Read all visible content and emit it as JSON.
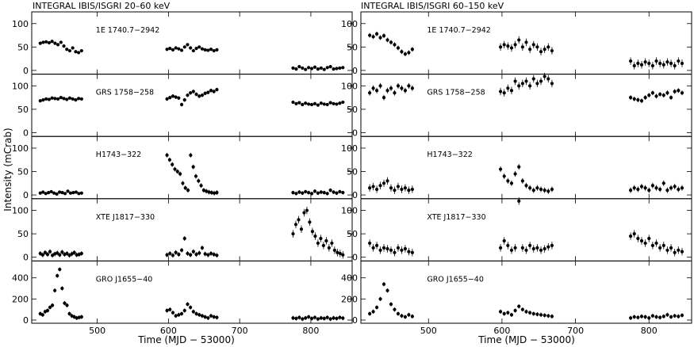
{
  "chart_data": {
    "type": "scatter",
    "ylabel": "Intensity (mCrab)",
    "xlabel": "Time (MJD − 53000)",
    "x_ticks": [
      500,
      600,
      700,
      800
    ],
    "xlim": [
      408,
      858
    ],
    "columns": [
      {
        "title": "INTEGRAL IBIS/ISGRI 20–60 keV",
        "panels": [
          {
            "source": "1E 1740.7−2942",
            "ylim": [
              -8,
              125
            ],
            "y_ticks": [
              0,
              50,
              100
            ],
            "segments": [
              {
                "x0": 420,
                "x1": 478,
                "y": [
                  58,
                  60,
                  61,
                  59,
                  62,
                  58,
                  55,
                  60,
                  52,
                  45,
                  42,
                  48,
                  40,
                  38,
                  42
                ],
                "err": 3
              },
              {
                "x0": 598,
                "x1": 668,
                "y": [
                  45,
                  47,
                  44,
                  48,
                  46,
                  43,
                  50,
                  55,
                  48,
                  42,
                  47,
                  50,
                  46,
                  44,
                  43,
                  45,
                  42,
                  44
                ],
                "err": 3
              },
              {
                "x0": 775,
                "x1": 845,
                "y": [
                  5,
                  3,
                  8,
                  5,
                  2,
                  6,
                  4,
                  7,
                  3,
                  5,
                  2,
                  6,
                  8,
                  3,
                  4,
                  5,
                  6
                ],
                "err": 3
              }
            ]
          },
          {
            "source": "GRS 1758−258",
            "ylim": [
              -8,
              125
            ],
            "y_ticks": [
              0,
              50,
              100
            ],
            "segments": [
              {
                "x0": 420,
                "x1": 478,
                "y": [
                  68,
                  70,
                  72,
                  71,
                  74,
                  73,
                  72,
                  75,
                  73,
                  71,
                  74,
                  72,
                  70,
                  73,
                  72
                ],
                "err": 3
              },
              {
                "x0": 598,
                "x1": 668,
                "y": [
                  72,
                  75,
                  78,
                  76,
                  74,
                  60,
                  70,
                  80,
                  85,
                  88,
                  82,
                  78,
                  80,
                  84,
                  86,
                  90,
                  88,
                  92
                ],
                "err": 4
              },
              {
                "x0": 775,
                "x1": 845,
                "y": [
                  65,
                  62,
                  64,
                  60,
                  63,
                  61,
                  60,
                  62,
                  59,
                  63,
                  61,
                  60,
                  64,
                  62,
                  61,
                  63,
                  65
                ],
                "err": 3
              }
            ]
          },
          {
            "source": "H1743−322",
            "ylim": [
              -8,
              125
            ],
            "y_ticks": [
              0,
              50,
              100
            ],
            "segments": [
              {
                "x0": 420,
                "x1": 478,
                "y": [
                  4,
                  6,
                  3,
                  5,
                  7,
                  4,
                  2,
                  6,
                  5,
                  3,
                  8,
                  4,
                  5,
                  6,
                  3,
                  4
                ],
                "err": 3
              },
              {
                "x0": 598,
                "x1": 668,
                "y": [
                  85,
                  75,
                  65,
                  55,
                  50,
                  45,
                  25,
                  15,
                  10,
                  85,
                  60,
                  40,
                  30,
                  20,
                  10,
                  8,
                  6,
                  5,
                  4,
                  5
                ],
                "err": 5
              },
              {
                "x0": 775,
                "x1": 845,
                "y": [
                  5,
                  3,
                  6,
                  4,
                  7,
                  5,
                  3,
                  8,
                  4,
                  6,
                  5,
                  3,
                  10,
                  6,
                  4,
                  7,
                  5
                ],
                "err": 4
              }
            ]
          },
          {
            "source": "XTE J1817−330",
            "ylim": [
              -8,
              125
            ],
            "y_ticks": [
              0,
              50,
              100
            ],
            "segments": [
              {
                "x0": 420,
                "x1": 478,
                "y": [
                  8,
                  5,
                  10,
                  6,
                  12,
                  4,
                  7,
                  9,
                  5,
                  11,
                  6,
                  8,
                  4,
                  7,
                  10,
                  5,
                  6,
                  8
                ],
                "err": 5
              },
              {
                "x0": 598,
                "x1": 668,
                "y": [
                  5,
                  8,
                  4,
                  10,
                  6,
                  15,
                  40,
                  8,
                  5,
                  12,
                  6,
                  9,
                  20,
                  7,
                  5,
                  8,
                  6,
                  4
                ],
                "err": 5
              },
              {
                "x0": 775,
                "x1": 845,
                "y": [
                  50,
                  70,
                  80,
                  60,
                  95,
                  100,
                  75,
                  55,
                  45,
                  30,
                  40,
                  25,
                  35,
                  20,
                  30,
                  15,
                  10,
                  8,
                  5
                ],
                "err": 8
              }
            ]
          },
          {
            "source": "GRO J1655−40",
            "ylim": [
              -30,
              560
            ],
            "y_ticks": [
              0,
              200,
              400
            ],
            "segments": [
              {
                "x0": 420,
                "x1": 478,
                "y": [
                  60,
                  50,
                  80,
                  90,
                  120,
                  140,
                  280,
                  420,
                  480,
                  300,
                  160,
                  140,
                  60,
                  40,
                  30,
                  20,
                  25,
                  30
                ],
                "err": 20
              },
              {
                "x0": 598,
                "x1": 668,
                "y": [
                  90,
                  100,
                  70,
                  40,
                  50,
                  60,
                  90,
                  150,
                  120,
                  80,
                  60,
                  50,
                  40,
                  30,
                  20,
                  40,
                  30,
                  25
                ],
                "err": 20
              },
              {
                "x0": 775,
                "x1": 845,
                "y": [
                  20,
                  15,
                  25,
                  10,
                  20,
                  30,
                  15,
                  25,
                  10,
                  20,
                  15,
                  25,
                  10,
                  20,
                  15,
                  25,
                  18
                ],
                "err": 20
              }
            ]
          }
        ]
      },
      {
        "title": "INTEGRAL IBIS/ISGRI 60–150 keV",
        "panels": [
          {
            "source": "1E 1740.7−2942",
            "ylim": [
              -8,
              125
            ],
            "y_ticks": [
              0,
              50,
              100
            ],
            "segments": [
              {
                "x0": 420,
                "x1": 478,
                "y": [
                  75,
                  72,
                  78,
                  70,
                  74,
                  65,
                  60,
                  55,
                  48,
                  40,
                  35,
                  38,
                  45
                ],
                "err": 5
              },
              {
                "x0": 598,
                "x1": 668,
                "y": [
                  50,
                  55,
                  52,
                  48,
                  55,
                  65,
                  50,
                  60,
                  45,
                  55,
                  50,
                  40,
                  45,
                  50,
                  42
                ],
                "err": 8
              },
              {
                "x0": 775,
                "x1": 845,
                "y": [
                  20,
                  10,
                  15,
                  12,
                  18,
                  15,
                  10,
                  20,
                  15,
                  12,
                  18,
                  15,
                  10,
                  20,
                  15
                ],
                "err": 8
              }
            ]
          },
          {
            "source": "GRS 1758−258",
            "ylim": [
              -8,
              125
            ],
            "y_ticks": [
              0,
              50,
              100
            ],
            "segments": [
              {
                "x0": 420,
                "x1": 478,
                "y": [
                  85,
                  95,
                  90,
                  100,
                  75,
                  90,
                  95,
                  85,
                  100,
                  95,
                  90,
                  100,
                  95
                ],
                "err": 6
              },
              {
                "x0": 598,
                "x1": 668,
                "y": [
                  88,
                  85,
                  95,
                  90,
                  110,
                  100,
                  105,
                  110,
                  100,
                  115,
                  105,
                  110,
                  120,
                  115,
                  105
                ],
                "err": 8
              },
              {
                "x0": 775,
                "x1": 845,
                "y": [
                  75,
                  72,
                  70,
                  68,
                  75,
                  80,
                  85,
                  78,
                  82,
                  80,
                  85,
                  75,
                  88,
                  90,
                  85
                ],
                "err": 5
              }
            ]
          },
          {
            "source": "H1743−322",
            "ylim": [
              -8,
              125
            ],
            "y_ticks": [
              0,
              50,
              100
            ],
            "segments": [
              {
                "x0": 420,
                "x1": 478,
                "y": [
                  15,
                  18,
                  12,
                  20,
                  25,
                  30,
                  15,
                  10,
                  18,
                  12,
                  15,
                  10,
                  12
                ],
                "err": 8
              },
              {
                "x0": 598,
                "x1": 668,
                "y": [
                  55,
                  40,
                  30,
                  25,
                  45,
                  60,
                  30,
                  20,
                  15,
                  10,
                  15,
                  12,
                  10,
                  8,
                  12
                ],
                "err": 6
              },
              {
                "x0": 775,
                "x1": 845,
                "y": [
                  10,
                  15,
                  12,
                  18,
                  15,
                  10,
                  20,
                  15,
                  12,
                  25,
                  10,
                  15,
                  18,
                  12,
                  15
                ],
                "err": 6
              }
            ]
          },
          {
            "source": "XTE J1817−330",
            "ylim": [
              -8,
              125
            ],
            "y_ticks": [
              0,
              50,
              100
            ],
            "segments": [
              {
                "x0": 420,
                "x1": 478,
                "y": [
                  30,
                  20,
                  25,
                  15,
                  20,
                  18,
                  15,
                  10,
                  20,
                  15,
                  18,
                  12,
                  10
                ],
                "err": 8
              },
              {
                "x0": 598,
                "x1": 668,
                "y": [
                  20,
                  35,
                  25,
                  15,
                  20,
                  120,
                  20,
                  15,
                  25,
                  18,
                  20,
                  15,
                  18,
                  22,
                  25
                ],
                "err": 8
              },
              {
                "x0": 775,
                "x1": 845,
                "y": [
                  45,
                  50,
                  40,
                  35,
                  30,
                  40,
                  25,
                  30,
                  20,
                  25,
                  15,
                  20,
                  10,
                  15,
                  12
                ],
                "err": 8
              }
            ]
          },
          {
            "source": "GRO J1655−40",
            "ylim": [
              -30,
              560
            ],
            "y_ticks": [
              0,
              200,
              400
            ],
            "segments": [
              {
                "x0": 420,
                "x1": 478,
                "y": [
                  60,
                  80,
                  120,
                  200,
                  340,
                  280,
                  150,
                  100,
                  60,
                  40,
                  30,
                  50,
                  35
                ],
                "err": 20
              },
              {
                "x0": 598,
                "x1": 668,
                "y": [
                  80,
                  60,
                  70,
                  50,
                  90,
                  130,
                  100,
                  80,
                  70,
                  60,
                  55,
                  50,
                  45,
                  40,
                  35
                ],
                "err": 20
              },
              {
                "x0": 775,
                "x1": 845,
                "y": [
                  20,
                  30,
                  25,
                  35,
                  30,
                  20,
                  40,
                  30,
                  25,
                  35,
                  50,
                  30,
                  40,
                  35,
                  45
                ],
                "err": 20
              }
            ]
          }
        ]
      }
    ]
  }
}
